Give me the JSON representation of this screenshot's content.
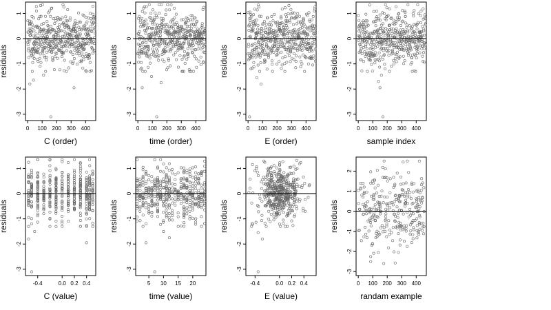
{
  "chart_data": [
    {
      "type": "scatter",
      "xlabel": "C (order)",
      "ylabel": "residuals",
      "xlim": [
        -15,
        470
      ],
      "ylim": [
        -3.25,
        1.45
      ],
      "xticks": [
        0,
        100,
        200,
        300,
        400
      ],
      "xtick_labels": [
        "0",
        "100",
        "200",
        "300",
        "400"
      ],
      "yticks": [
        -3,
        -2,
        -1,
        0,
        1
      ],
      "ytick_labels": [
        "-3",
        "-2",
        "-1",
        "0",
        "1"
      ],
      "hline": 0,
      "grid": false,
      "points_generated": {
        "n": 470,
        "x_kind": "index",
        "y_sd": 0.55,
        "seed": 11,
        "outliers": [
          [
            15,
            -1.8
          ],
          [
            40,
            -1.65
          ],
          [
            110,
            -1.45
          ],
          [
            320,
            -1.95
          ],
          [
            160,
            -3.1
          ]
        ]
      }
    },
    {
      "type": "scatter",
      "xlabel": "time (order)",
      "ylabel": "residuals",
      "xlim": [
        -15,
        470
      ],
      "ylim": [
        -3.25,
        1.45
      ],
      "xticks": [
        0,
        100,
        200,
        300,
        400
      ],
      "xtick_labels": [
        "0",
        "100",
        "200",
        "300",
        "400"
      ],
      "yticks": [
        -3,
        -2,
        -1,
        0,
        1
      ],
      "ytick_labels": [
        "-3",
        "-2",
        "-1",
        "0",
        "1"
      ],
      "hline": 0,
      "grid": false,
      "points_generated": {
        "n": 470,
        "x_kind": "index",
        "y_sd": 0.55,
        "seed": 23,
        "outliers": [
          [
            30,
            -1.95
          ],
          [
            160,
            -1.75
          ],
          [
            95,
            -1.5
          ],
          [
            130,
            -3.1
          ]
        ]
      }
    },
    {
      "type": "scatter",
      "xlabel": "E (order)",
      "ylabel": "residuals",
      "xlim": [
        -15,
        470
      ],
      "ylim": [
        -3.25,
        1.45
      ],
      "xticks": [
        0,
        100,
        200,
        300,
        400
      ],
      "xtick_labels": [
        "0",
        "100",
        "200",
        "300",
        "400"
      ],
      "yticks": [
        -3,
        -2,
        -1,
        0,
        1
      ],
      "ytick_labels": [
        "-3",
        "-2",
        "-1",
        "0",
        "1"
      ],
      "hline": 0,
      "grid": false,
      "points_generated": {
        "n": 470,
        "x_kind": "index",
        "y_sd": 0.55,
        "seed": 37,
        "outliers": [
          [
            20,
            -1.2
          ],
          [
            60,
            -1.55
          ],
          [
            90,
            -1.8
          ],
          [
            10,
            -3.1
          ]
        ]
      }
    },
    {
      "type": "scatter",
      "xlabel": "sample index",
      "ylabel": "residuals",
      "xlim": [
        -15,
        470
      ],
      "ylim": [
        -3.25,
        1.45
      ],
      "xticks": [
        0,
        100,
        200,
        300,
        400
      ],
      "xtick_labels": [
        "0",
        "100",
        "200",
        "300",
        "400"
      ],
      "yticks": [
        -3,
        -2,
        -1,
        0,
        1
      ],
      "ytick_labels": [
        "-3",
        "-2",
        "-1",
        "0",
        "1"
      ],
      "hline": 0,
      "grid": false,
      "points_generated": {
        "n": 470,
        "x_kind": "index",
        "y_sd": 0.55,
        "seed": 41,
        "outliers": [
          [
            140,
            -1.7
          ],
          [
            160,
            -1.45
          ],
          [
            150,
            -1.95
          ],
          [
            170,
            -3.1
          ]
        ]
      }
    },
    {
      "type": "scatter",
      "xlabel": "C (value)",
      "ylabel": "residuals",
      "xlim": [
        -0.6,
        0.55
      ],
      "ylim": [
        -3.25,
        1.45
      ],
      "xticks": [
        -0.4,
        0.0,
        0.2,
        0.4
      ],
      "xtick_labels": [
        "-0.4",
        "0.0",
        "0.2",
        "0.4"
      ],
      "yticks": [
        -3,
        -2,
        -1,
        0,
        1
      ],
      "ytick_labels": [
        "-3",
        "-2",
        "-1",
        "0",
        "1"
      ],
      "hline": 0,
      "grid": false,
      "points_generated": {
        "n": 470,
        "x_kind": "discrete",
        "x_values": [
          -0.55,
          -0.5,
          -0.4,
          -0.3,
          -0.2,
          -0.1,
          0.0,
          0.1,
          0.2,
          0.3,
          0.4,
          0.45,
          0.5
        ],
        "y_sd": 0.55,
        "seed": 53,
        "outliers": [
          [
            -0.55,
            -1.8
          ],
          [
            -0.45,
            -1.5
          ],
          [
            -0.2,
            -1.3
          ],
          [
            0.4,
            -1.95
          ],
          [
            -0.5,
            -3.1
          ]
        ]
      }
    },
    {
      "type": "scatter",
      "xlabel": "time (value)",
      "ylabel": "residuals",
      "xlim": [
        0.5,
        24.5
      ],
      "ylim": [
        -3.25,
        1.45
      ],
      "xticks": [
        5,
        10,
        15,
        20
      ],
      "xtick_labels": [
        "5",
        "10",
        "15",
        "20"
      ],
      "yticks": [
        -3,
        -2,
        -1,
        0,
        1
      ],
      "ytick_labels": [
        "-3",
        "-2",
        "-1",
        "0",
        "1"
      ],
      "hline": 0,
      "grid": false,
      "points_generated": {
        "n": 470,
        "x_kind": "discrete",
        "x_values": [
          1,
          2,
          3,
          4,
          5,
          6,
          7,
          8,
          9,
          10,
          11,
          12,
          13,
          14,
          15,
          16,
          17,
          18,
          19,
          20,
          21,
          22,
          23,
          24
        ],
        "y_sd": 0.55,
        "seed": 61,
        "outliers": [
          [
            4,
            -1.95
          ],
          [
            12,
            -1.75
          ],
          [
            10,
            -1.5
          ],
          [
            7,
            -3.1
          ]
        ]
      }
    },
    {
      "type": "scatter",
      "xlabel": "E (value)",
      "ylabel": "residuals",
      "xlim": [
        -0.55,
        0.6
      ],
      "ylim": [
        -3.25,
        1.45
      ],
      "xticks": [
        -0.4,
        0.0,
        0.2,
        0.4
      ],
      "xtick_labels": [
        "-0.4",
        "0.0",
        "0.2",
        "0.4"
      ],
      "yticks": [
        -3,
        -2,
        -1,
        0,
        1
      ],
      "ytick_labels": [
        "-3",
        "-2",
        "-1",
        "0",
        "1"
      ],
      "hline": 0,
      "grid": false,
      "points_generated": {
        "n": 470,
        "x_kind": "continuous_centered",
        "x_center": 0.0,
        "x_sd": 0.18,
        "y_sd": 0.55,
        "seed": 71,
        "outliers": [
          [
            -0.45,
            -1.2
          ],
          [
            -0.35,
            -1.55
          ],
          [
            -0.28,
            -1.8
          ],
          [
            -0.35,
            -3.1
          ]
        ]
      }
    },
    {
      "type": "scatter",
      "xlabel": "randam example",
      "ylabel": "residuals",
      "xlim": [
        -15,
        470
      ],
      "ylim": [
        -3.2,
        2.7
      ],
      "xticks": [
        0,
        100,
        200,
        300,
        400
      ],
      "xtick_labels": [
        "0",
        "100",
        "200",
        "300",
        "400"
      ],
      "yticks": [
        -3,
        -2,
        -1,
        0,
        1,
        2
      ],
      "ytick_labels": [
        "-3",
        "-2",
        "-1",
        "0",
        "1",
        "2"
      ],
      "hline": 0,
      "grid": false,
      "points_generated": {
        "n": 300,
        "x_kind": "random_index",
        "y_sd": 1.0,
        "seed": 89,
        "outliers": []
      }
    }
  ],
  "colors": {
    "point": "#666666",
    "axis": "#000000",
    "hline": "#000000",
    "background": "#ffffff"
  },
  "marker": "open-circle"
}
